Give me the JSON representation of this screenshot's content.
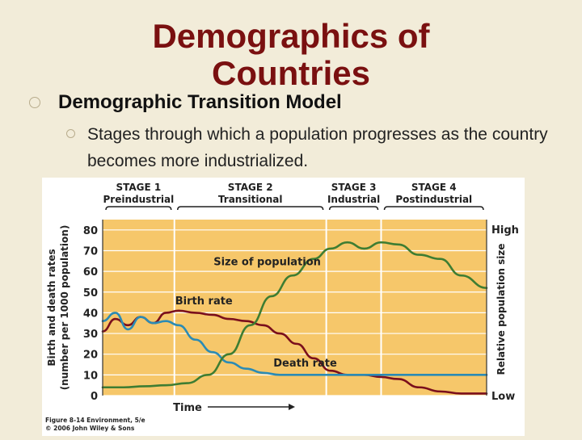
{
  "slide": {
    "title_line1": "Demographics of",
    "title_line2": "Countries",
    "bullet_1": "Demographic Transition Model",
    "bullet_2": "Stages through which a population progresses as the country becomes more industrialized."
  },
  "colors": {
    "plot_bg": "#f6c76a",
    "birth_rate": "#7a0f1c",
    "death_rate": "#2b8bb5",
    "population": "#3e7d32",
    "title": "#7a1010",
    "stage_divider": "#ffffff"
  },
  "chart_data": {
    "type": "line",
    "stages": [
      {
        "name": "STAGE 1",
        "label": "Preindustrial",
        "x_range": [
          0,
          1.7
        ]
      },
      {
        "name": "STAGE 2",
        "label": "Transitional",
        "x_range": [
          1.7,
          5.3
        ]
      },
      {
        "name": "STAGE 3",
        "label": "Industrial",
        "x_range": [
          5.3,
          6.6
        ]
      },
      {
        "name": "STAGE 4",
        "label": "Postindustrial",
        "x_range": [
          6.6,
          9.1
        ]
      }
    ],
    "xlabel": "Time",
    "ylabel": "Birth and death rates",
    "ylabel_sub": "(number per 1000 population)",
    "y2label": "Relative population size",
    "y2_high": "High",
    "y2_low": "Low",
    "yticks": [
      0,
      10,
      20,
      30,
      40,
      50,
      60,
      70,
      80
    ],
    "ylim": [
      0,
      85
    ],
    "xlim": [
      0,
      9.1
    ],
    "series": [
      {
        "name": "Birth rate",
        "x": [
          0,
          0.3,
          0.6,
          0.9,
          1.2,
          1.5,
          1.8,
          2.2,
          2.6,
          3.0,
          3.4,
          3.8,
          4.2,
          4.6,
          5.0,
          5.4,
          5.8,
          6.2,
          6.6,
          7.0,
          7.5,
          8.0,
          8.5,
          9.1
        ],
        "values": [
          31,
          37,
          34,
          38,
          35,
          40,
          41,
          40,
          39,
          37,
          36,
          34,
          30,
          25,
          18,
          12,
          10,
          10,
          9,
          8,
          4,
          2,
          1,
          1
        ]
      },
      {
        "name": "Death rate",
        "x": [
          0,
          0.3,
          0.6,
          0.9,
          1.2,
          1.5,
          1.8,
          2.2,
          2.6,
          3.0,
          3.4,
          3.8,
          4.2,
          4.6,
          5.0,
          5.4,
          5.8,
          6.2,
          6.6,
          7.0,
          7.5,
          8.0,
          8.5,
          9.1
        ],
        "values": [
          36,
          40,
          32,
          38,
          35,
          36,
          34,
          27,
          21,
          16,
          13,
          11,
          10,
          10,
          10,
          10,
          10,
          10,
          10,
          10,
          10,
          10,
          10,
          10
        ]
      },
      {
        "name": "Size of population",
        "x": [
          0,
          0.5,
          1.0,
          1.5,
          2.0,
          2.5,
          3.0,
          3.5,
          4.0,
          4.5,
          5.0,
          5.4,
          5.8,
          6.2,
          6.6,
          7.0,
          7.5,
          8.0,
          8.5,
          9.1
        ],
        "values": [
          4,
          4,
          4.5,
          5,
          6,
          10,
          20,
          34,
          48,
          58,
          66,
          71,
          74,
          71,
          74,
          73,
          68,
          66,
          58,
          52
        ]
      }
    ],
    "grid": true,
    "legend": "inline labels"
  },
  "figure_caption": {
    "line1": "Figure 8-14 Environment, 5/e",
    "line2": "© 2006 John Wiley & Sons"
  }
}
